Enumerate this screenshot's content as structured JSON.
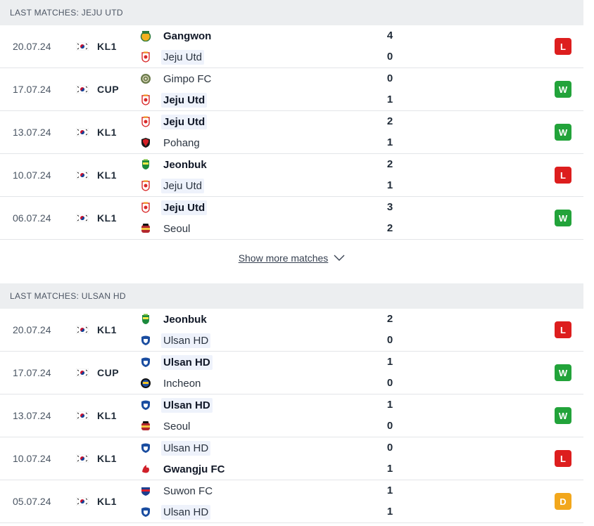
{
  "colors": {
    "win": "#22a33a",
    "loss": "#dd1e1e",
    "draw": "#f2a71c",
    "header_bg": "#eceef0",
    "highlight_bg": "#eef2fb"
  },
  "sections": [
    {
      "title": "LAST MATCHES: JEJU UTD",
      "show_more_label": "Show more matches",
      "matches": [
        {
          "date": "20.07.24",
          "comp": "KL1",
          "home": {
            "name": "Gangwon",
            "logo": "gangwon-logo-icon",
            "bold": true
          },
          "away": {
            "name": "Jeju Utd",
            "logo": "jeju-logo-icon",
            "bold": false,
            "hl": true
          },
          "home_score": "4",
          "away_score": "0",
          "result": "L"
        },
        {
          "date": "17.07.24",
          "comp": "CUP",
          "home": {
            "name": "Gimpo FC",
            "logo": "gimpo-logo-icon",
            "bold": false
          },
          "away": {
            "name": "Jeju Utd",
            "logo": "jeju-logo-icon",
            "bold": true,
            "hl": true
          },
          "home_score": "0",
          "away_score": "1",
          "result": "W"
        },
        {
          "date": "13.07.24",
          "comp": "KL1",
          "home": {
            "name": "Jeju Utd",
            "logo": "jeju-logo-icon",
            "bold": true,
            "hl": true
          },
          "away": {
            "name": "Pohang",
            "logo": "pohang-logo-icon",
            "bold": false
          },
          "home_score": "2",
          "away_score": "1",
          "result": "W"
        },
        {
          "date": "10.07.24",
          "comp": "KL1",
          "home": {
            "name": "Jeonbuk",
            "logo": "jeonbuk-logo-icon",
            "bold": true
          },
          "away": {
            "name": "Jeju Utd",
            "logo": "jeju-logo-icon",
            "bold": false,
            "hl": true
          },
          "home_score": "2",
          "away_score": "1",
          "result": "L"
        },
        {
          "date": "06.07.24",
          "comp": "KL1",
          "home": {
            "name": "Jeju Utd",
            "logo": "jeju-logo-icon",
            "bold": true,
            "hl": true
          },
          "away": {
            "name": "Seoul",
            "logo": "seoul-logo-icon",
            "bold": false
          },
          "home_score": "3",
          "away_score": "2",
          "result": "W"
        }
      ]
    },
    {
      "title": "LAST MATCHES: ULSAN HD",
      "matches": [
        {
          "date": "20.07.24",
          "comp": "KL1",
          "home": {
            "name": "Jeonbuk",
            "logo": "jeonbuk-logo-icon",
            "bold": true
          },
          "away": {
            "name": "Ulsan HD",
            "logo": "ulsan-logo-icon",
            "bold": false,
            "hl": true
          },
          "home_score": "2",
          "away_score": "0",
          "result": "L"
        },
        {
          "date": "17.07.24",
          "comp": "CUP",
          "home": {
            "name": "Ulsan HD",
            "logo": "ulsan-logo-icon",
            "bold": true,
            "hl": true
          },
          "away": {
            "name": "Incheon",
            "logo": "incheon-logo-icon",
            "bold": false
          },
          "home_score": "1",
          "away_score": "0",
          "result": "W"
        },
        {
          "date": "13.07.24",
          "comp": "KL1",
          "home": {
            "name": "Ulsan HD",
            "logo": "ulsan-logo-icon",
            "bold": true,
            "hl": true
          },
          "away": {
            "name": "Seoul",
            "logo": "seoul-logo-icon",
            "bold": false
          },
          "home_score": "1",
          "away_score": "0",
          "result": "W"
        },
        {
          "date": "10.07.24",
          "comp": "KL1",
          "home": {
            "name": "Ulsan HD",
            "logo": "ulsan-logo-icon",
            "bold": false,
            "hl": true
          },
          "away": {
            "name": "Gwangju FC",
            "logo": "gwangju-logo-icon",
            "bold": true
          },
          "home_score": "0",
          "away_score": "1",
          "result": "L"
        },
        {
          "date": "05.07.24",
          "comp": "KL1",
          "home": {
            "name": "Suwon FC",
            "logo": "suwon-logo-icon",
            "bold": false
          },
          "away": {
            "name": "Ulsan HD",
            "logo": "ulsan-logo-icon",
            "bold": false,
            "hl": true
          },
          "home_score": "1",
          "away_score": "1",
          "result": "D"
        }
      ]
    }
  ]
}
